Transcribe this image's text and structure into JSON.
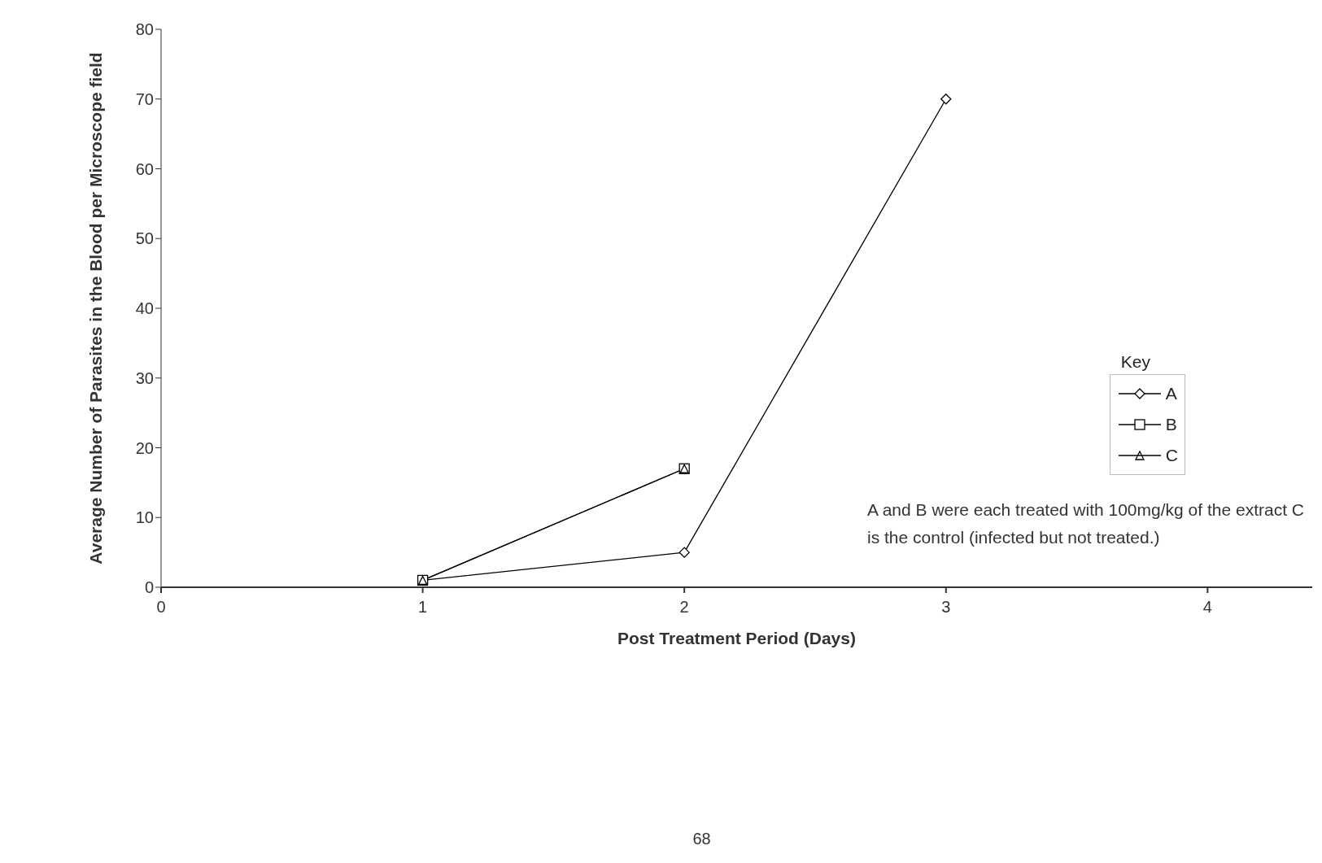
{
  "chart_data": {
    "type": "line",
    "xlabel": "Post Treatment Period (Days)",
    "ylabel": "Average Number of Parasites in the Blood per Microscope field",
    "legend_title": "Key",
    "legend": "right",
    "series": [
      {
        "name": "A",
        "color": "#000000",
        "marker": "diamond",
        "x": [
          1,
          2,
          3
        ],
        "values": [
          1,
          5,
          70
        ]
      },
      {
        "name": "B",
        "color": "#000000",
        "marker": "square",
        "x": [
          1,
          2
        ],
        "values": [
          1,
          17
        ]
      },
      {
        "name": "C",
        "color": "#000000",
        "marker": "triangle",
        "x": [
          1,
          2
        ],
        "values": [
          1,
          17
        ]
      }
    ],
    "xlim": [
      0,
      4.4
    ],
    "xticks": [
      0,
      1,
      2,
      3,
      4
    ],
    "ylim": [
      0,
      80
    ],
    "yticks": [
      0,
      10,
      20,
      30,
      40,
      50,
      60,
      70,
      80
    ],
    "grid": false,
    "line_style": "solid",
    "annotations": [
      "A and B were each treated with 100mg/kg of the extract C is the control (infected but not treated.)",
      "68"
    ]
  }
}
